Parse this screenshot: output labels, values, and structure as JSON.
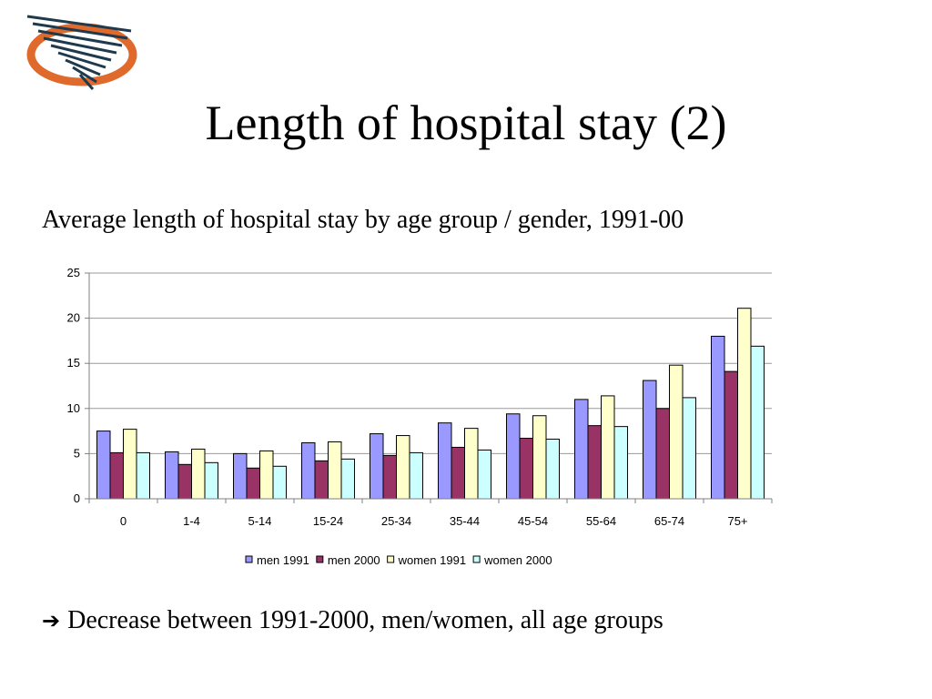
{
  "slide": {
    "title": "Length of hospital stay (2)",
    "subtitle": "Average length of hospital stay by age group / gender, 1991-00",
    "note_icon": "right-arrow-icon",
    "note": "Decrease between 1991-2000, men/women, all age groups",
    "logo_icon": "stylized-swoosh-logo",
    "logo_colors": {
      "ring": "#E06A2C",
      "stripes": "#1F3A4D"
    }
  },
  "chart_data": {
    "type": "bar",
    "categories": [
      "0",
      "1-4",
      "5-14",
      "15-24",
      "25-34",
      "35-44",
      "45-54",
      "55-64",
      "65-74",
      "75+"
    ],
    "series": [
      {
        "name": "men 1991",
        "color": "#9999FF",
        "values": [
          7.5,
          5.2,
          5.0,
          6.2,
          7.2,
          8.4,
          9.4,
          11.0,
          13.1,
          18.0
        ]
      },
      {
        "name": "men 2000",
        "color": "#993366",
        "values": [
          5.1,
          3.8,
          3.4,
          4.2,
          4.8,
          5.7,
          6.7,
          8.1,
          10.0,
          14.1
        ]
      },
      {
        "name": "women 1991",
        "color": "#FFFFCC",
        "values": [
          7.7,
          5.5,
          5.3,
          6.3,
          7.0,
          7.8,
          9.2,
          11.4,
          14.8,
          21.1
        ]
      },
      {
        "name": "women 2000",
        "color": "#CCFFFF",
        "values": [
          5.1,
          4.0,
          3.6,
          4.4,
          5.1,
          5.4,
          6.6,
          8.0,
          11.2,
          16.9
        ]
      }
    ],
    "yticks": [
      "0",
      "5",
      "10",
      "15",
      "20",
      "25"
    ],
    "ylim": [
      0,
      25
    ],
    "grid": true,
    "legend_position": "bottom"
  }
}
